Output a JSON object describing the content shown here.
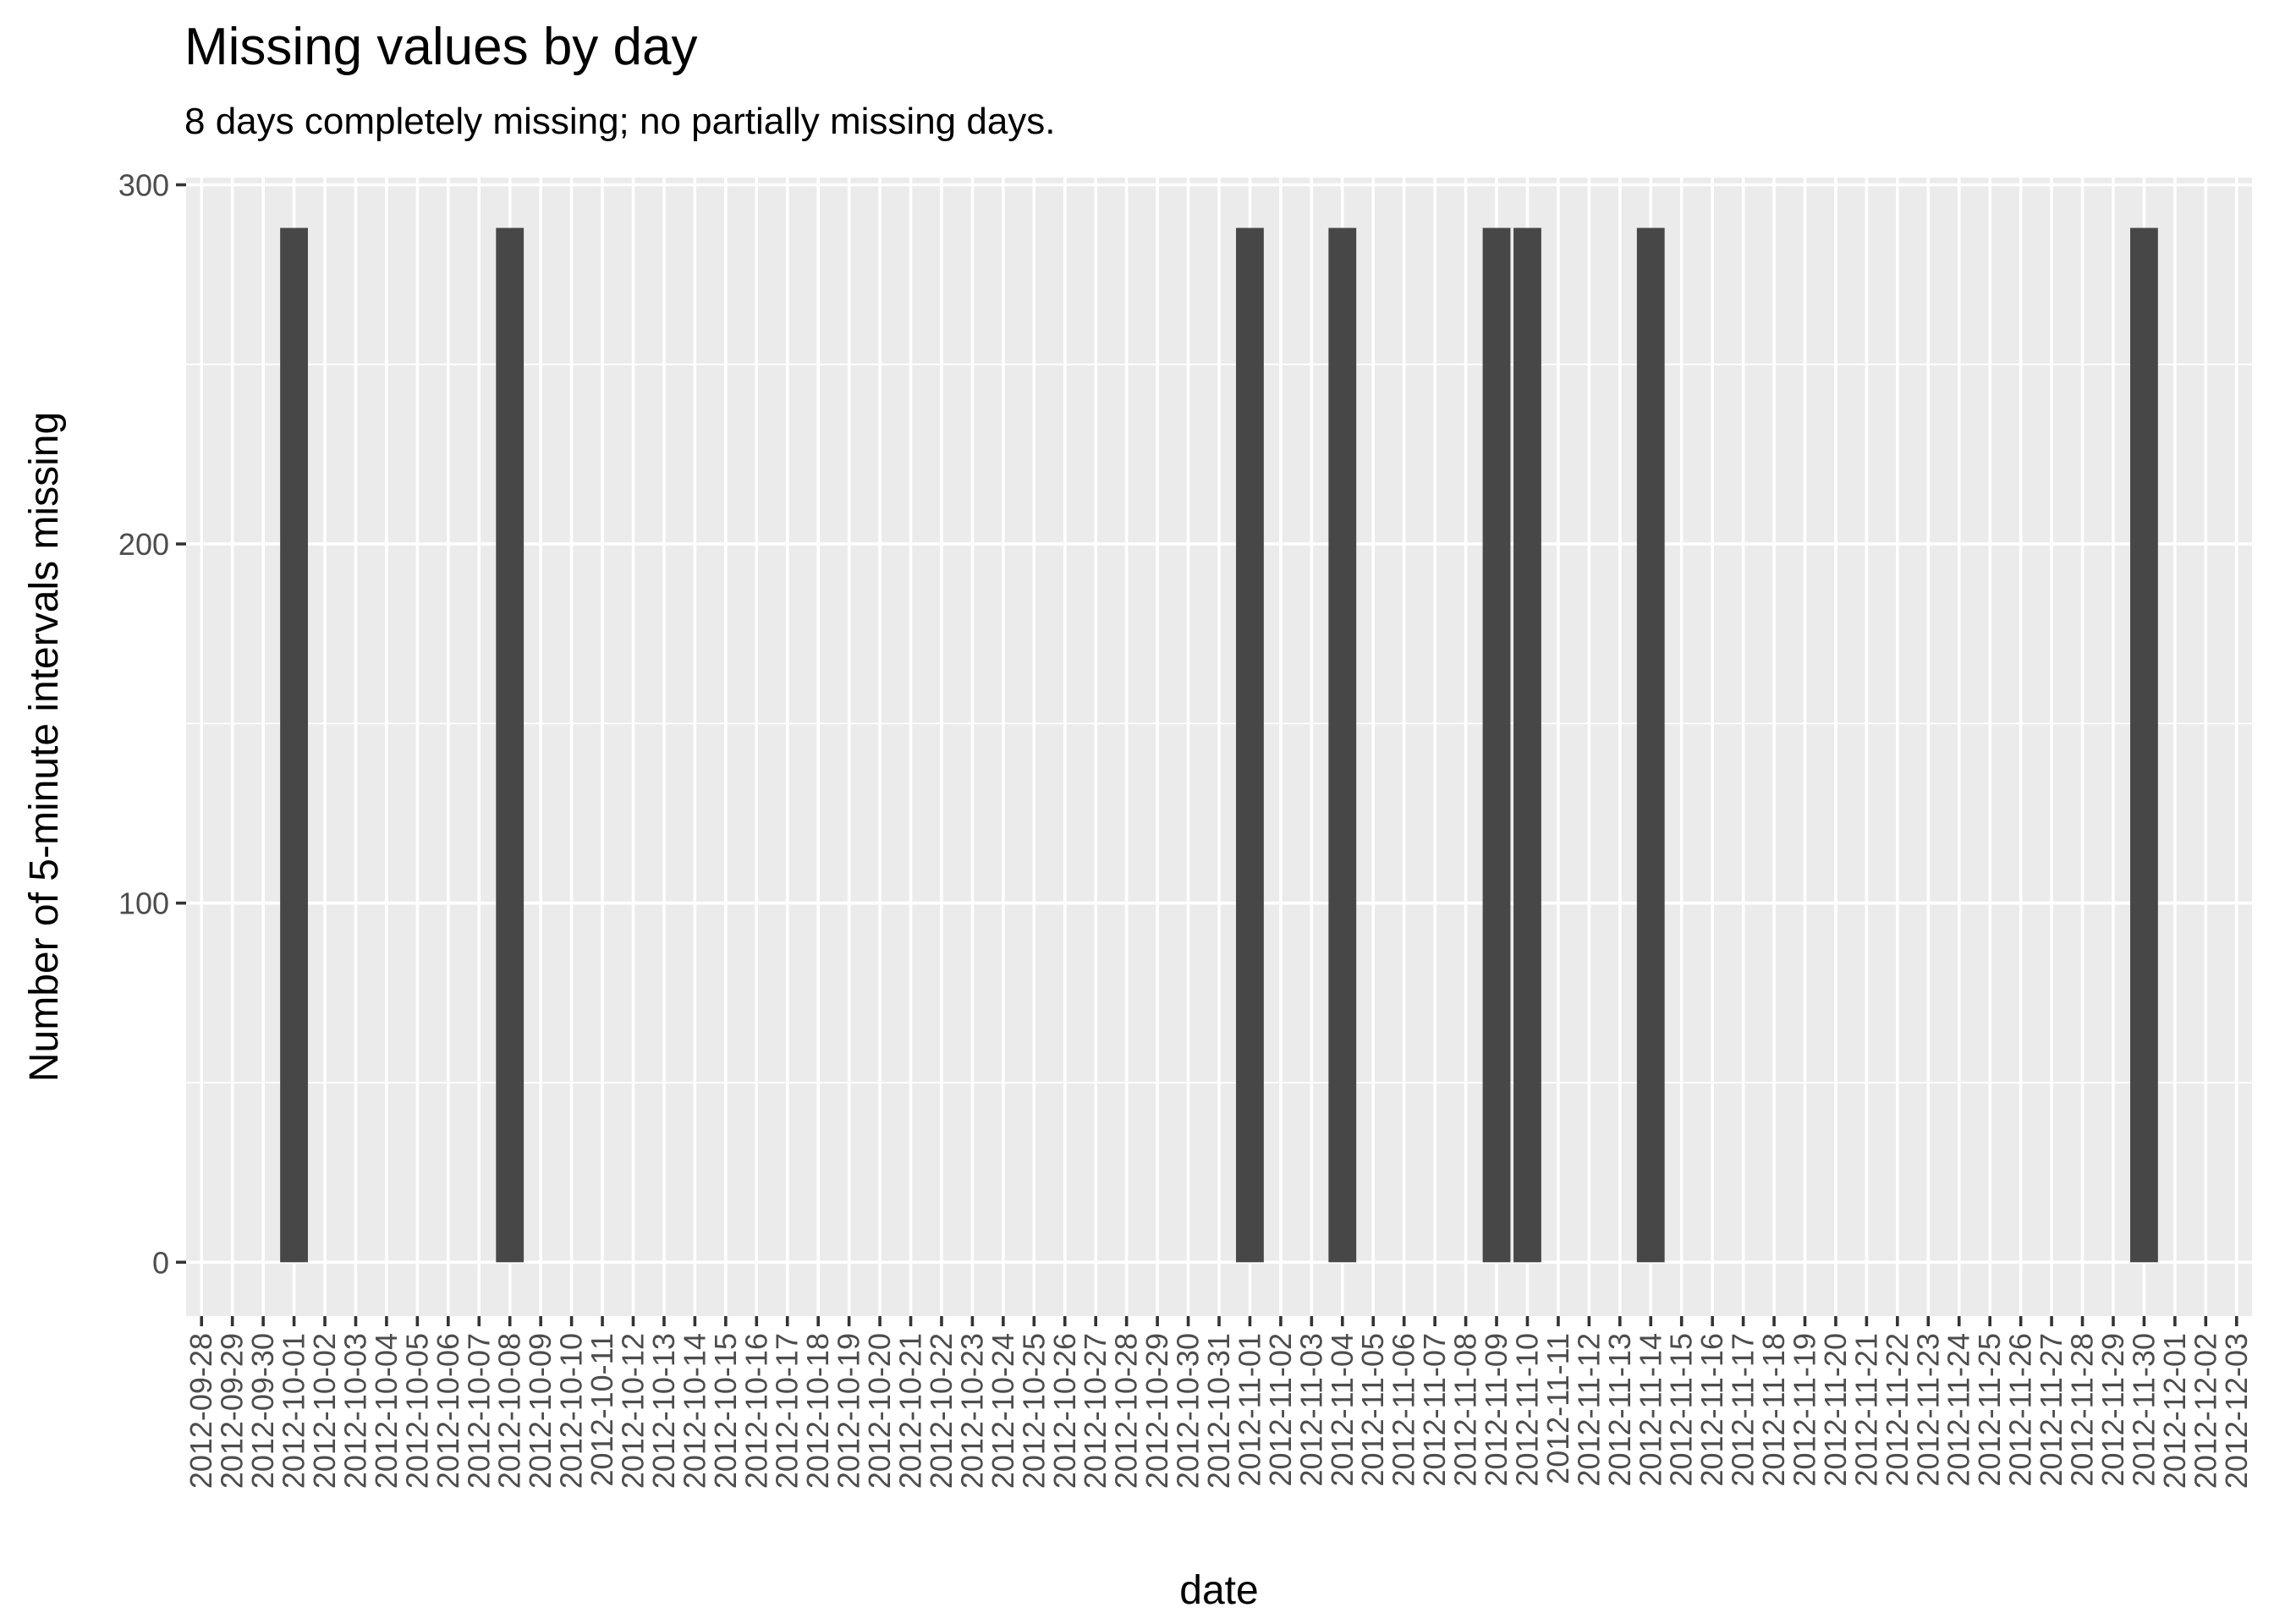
{
  "chart_data": {
    "type": "bar",
    "title": "Missing values by day",
    "subtitle": "8 days completely missing; no partially missing days.",
    "xlabel": "date",
    "ylabel": "Number of 5-minute intervals missing",
    "ylim": [
      -15,
      302
    ],
    "yticks": [
      0,
      100,
      200,
      300
    ],
    "grid": true,
    "bar_color": "#474747",
    "panel_color": "#ebebeb",
    "categories": [
      "2012-09-28",
      "2012-09-29",
      "2012-09-30",
      "2012-10-01",
      "2012-10-02",
      "2012-10-03",
      "2012-10-04",
      "2012-10-05",
      "2012-10-06",
      "2012-10-07",
      "2012-10-08",
      "2012-10-09",
      "2012-10-10",
      "2012-10-11",
      "2012-10-12",
      "2012-10-13",
      "2012-10-14",
      "2012-10-15",
      "2012-10-16",
      "2012-10-17",
      "2012-10-18",
      "2012-10-19",
      "2012-10-20",
      "2012-10-21",
      "2012-10-22",
      "2012-10-23",
      "2012-10-24",
      "2012-10-25",
      "2012-10-26",
      "2012-10-27",
      "2012-10-28",
      "2012-10-29",
      "2012-10-30",
      "2012-10-31",
      "2012-11-01",
      "2012-11-02",
      "2012-11-03",
      "2012-11-04",
      "2012-11-05",
      "2012-11-06",
      "2012-11-07",
      "2012-11-08",
      "2012-11-09",
      "2012-11-10",
      "2012-11-11",
      "2012-11-12",
      "2012-11-13",
      "2012-11-14",
      "2012-11-15",
      "2012-11-16",
      "2012-11-17",
      "2012-11-18",
      "2012-11-19",
      "2012-11-20",
      "2012-11-21",
      "2012-11-22",
      "2012-11-23",
      "2012-11-24",
      "2012-11-25",
      "2012-11-26",
      "2012-11-27",
      "2012-11-28",
      "2012-11-29",
      "2012-11-30",
      "2012-12-01",
      "2012-12-02",
      "2012-12-03"
    ],
    "values": [
      0,
      0,
      0,
      288,
      0,
      0,
      0,
      0,
      0,
      0,
      288,
      0,
      0,
      0,
      0,
      0,
      0,
      0,
      0,
      0,
      0,
      0,
      0,
      0,
      0,
      0,
      0,
      0,
      0,
      0,
      0,
      0,
      0,
      0,
      288,
      0,
      0,
      288,
      0,
      0,
      0,
      0,
      288,
      288,
      0,
      0,
      0,
      288,
      0,
      0,
      0,
      0,
      0,
      0,
      0,
      0,
      0,
      0,
      0,
      0,
      0,
      0,
      0,
      288,
      0,
      0,
      0
    ]
  }
}
